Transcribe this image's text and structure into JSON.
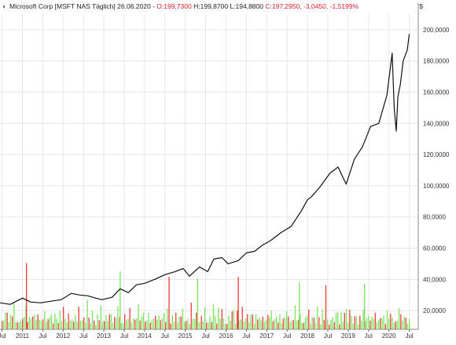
{
  "header": {
    "pin_icon": "pin-icon",
    "instrument": "Microsoft Corp [MSFT NAS Täglich]",
    "date": "26.06.2020",
    "open": "O:199,7300",
    "high": "H:199,8700",
    "low": "L:194,8800",
    "close": "C:197,2950",
    "change": "-3,0450",
    "change_pct": "-1,5199%"
  },
  "colors": {
    "price_line": "#111111",
    "volume_up": "#7be35a",
    "volume_down": "#ee3b3b",
    "grid": "#e6e6e6",
    "axis_text": "#333333",
    "negative": "#e0202a"
  },
  "chart_data": {
    "type": "line",
    "title": "",
    "ylabel": "$",
    "ylim": [
      8000,
      210000
    ],
    "yticks": [
      20000,
      40000,
      60000,
      80000,
      100000,
      120000,
      140000,
      160000,
      180000,
      200000
    ],
    "ytick_labels": [
      "20,0000",
      "40,0000",
      "60,0000",
      "80,0000",
      "100,0000",
      "120,0000",
      "140,0000",
      "160,0000",
      "180,0000",
      "200,0000"
    ],
    "xlim": [
      2010.45,
      2020.72
    ],
    "xticks": [
      2010.5,
      2011,
      2011.5,
      2012,
      2012.5,
      2013,
      2013.5,
      2014,
      2014.5,
      2015,
      2015.5,
      2016,
      2016.5,
      2017,
      2017.5,
      2018,
      2018.5,
      2019,
      2019.5,
      2020,
      2020.5
    ],
    "xtick_labels": [
      "Jul",
      "2011",
      "Jul",
      "2012",
      "Jul",
      "2013",
      "Jul",
      "2014",
      "Jul",
      "2015",
      "Jul",
      "2016",
      "Jul",
      "2017",
      "Jul",
      "2018",
      "Jul",
      "2019",
      "Jul",
      "2020",
      "Jul"
    ],
    "grid": true,
    "series": [
      {
        "x": [
          2010.45,
          2010.7,
          2011.0,
          2011.2,
          2011.45,
          2011.7,
          2011.95,
          2012.2,
          2012.4,
          2012.6,
          2012.8,
          2012.95,
          2013.2,
          2013.4,
          2013.6,
          2013.8,
          2014.0,
          2014.25,
          2014.5,
          2014.75,
          2014.95,
          2015.1,
          2015.35,
          2015.55,
          2015.7,
          2015.9,
          2016.05,
          2016.3,
          2016.5,
          2016.7,
          2016.9,
          2017.1,
          2017.35,
          2017.6,
          2017.85,
          2018.0,
          2018.1,
          2018.3,
          2018.55,
          2018.75,
          2018.95,
          2019.15,
          2019.35,
          2019.55,
          2019.75,
          2019.95,
          2020.08,
          2020.13,
          2020.18,
          2020.22,
          2020.28,
          2020.35,
          2020.45,
          2020.5
        ],
        "values": [
          25000,
          24000,
          28000,
          25500,
          25000,
          26000,
          27000,
          31000,
          30000,
          29500,
          28000,
          27000,
          28500,
          34000,
          31500,
          36500,
          37500,
          40000,
          43000,
          45000,
          47000,
          42000,
          48000,
          45000,
          53000,
          54000,
          50000,
          52000,
          57000,
          58000,
          62000,
          65000,
          70000,
          74000,
          84000,
          91000,
          93000,
          99000,
          108000,
          112000,
          101000,
          117000,
          125000,
          138000,
          140000,
          158000,
          185000,
          150000,
          135000,
          157000,
          165000,
          180000,
          187000,
          197300
        ]
      }
    ],
    "volume_scale_max": 50000000,
    "volume_start": 2010.5,
    "volume_end": 2020.5,
    "volume_pattern": [
      20,
      14,
      33,
      22,
      12,
      30,
      18,
      45,
      16,
      10,
      13,
      21,
      16,
      24,
      31,
      12,
      26,
      15,
      22,
      33,
      14,
      27,
      23,
      13,
      19,
      24,
      12,
      21,
      17,
      26,
      13,
      23,
      19,
      15,
      28,
      16,
      30,
      17,
      14,
      22,
      15,
      22,
      11,
      26,
      18,
      35,
      17,
      12,
      19,
      13,
      41,
      20,
      14,
      27,
      16,
      10,
      23,
      18,
      32,
      12,
      17
    ],
    "volume_spikes": [
      {
        "x": 2011.1,
        "value": 48000000
      },
      {
        "x": 2013.4,
        "value": 42000000
      },
      {
        "x": 2014.6,
        "value": 38000000
      },
      {
        "x": 2015.3,
        "value": 37000000
      },
      {
        "x": 2016.3,
        "value": 38000000
      },
      {
        "x": 2017.8,
        "value": 34000000
      },
      {
        "x": 2018.45,
        "value": 32000000
      },
      {
        "x": 2019.4,
        "value": 33000000
      }
    ]
  }
}
